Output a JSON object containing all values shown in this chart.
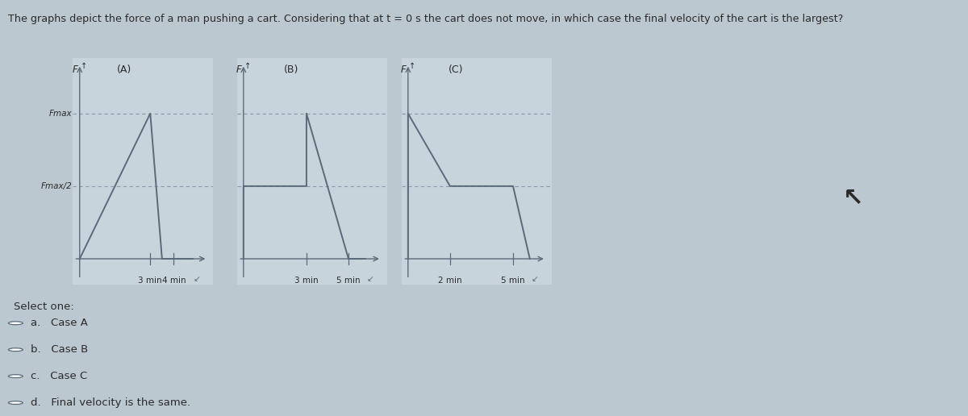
{
  "title": "The graphs depict the force of a man pushing a cart. Considering that at t = 0 s the cart does not move, in which case the final velocity of the cart is the largest?",
  "bg_color": "#bcc8d0",
  "panel_color": "#c8d4dc",
  "line_color": "#5a6a7a",
  "dash_color": "#8899aa",
  "text_color": "#2a2a2a",
  "fmax_label": "Fmax",
  "fmax2_label": "Fmax/2",
  "fmax": 1.0,
  "fmax2": 0.5,
  "graph_A": {
    "x": [
      0,
      3,
      3.5,
      4,
      4.8
    ],
    "y": [
      0,
      1.0,
      0,
      0,
      0
    ],
    "xticks": [
      3,
      4
    ],
    "xticklabels": [
      "3 min",
      "4 min"
    ]
  },
  "graph_B": {
    "x": [
      0,
      0,
      3,
      3,
      5,
      5.8
    ],
    "y": [
      0,
      0.5,
      0.5,
      1.0,
      0,
      0
    ],
    "xticks": [
      3,
      5
    ],
    "xticklabels": [
      "3 min",
      "5 min"
    ]
  },
  "graph_C": {
    "x": [
      0,
      0,
      2,
      2,
      5,
      5.8
    ],
    "y": [
      0,
      1.0,
      0.5,
      0.5,
      0.5,
      0
    ],
    "xticks": [
      2,
      5
    ],
    "xticklabels": [
      "2 min",
      "5 min"
    ]
  },
  "select_one": "Select one:",
  "options": [
    "a.   Case A",
    "b.   Case B",
    "c.   Case C",
    "d.   Final velocity is the same."
  ]
}
